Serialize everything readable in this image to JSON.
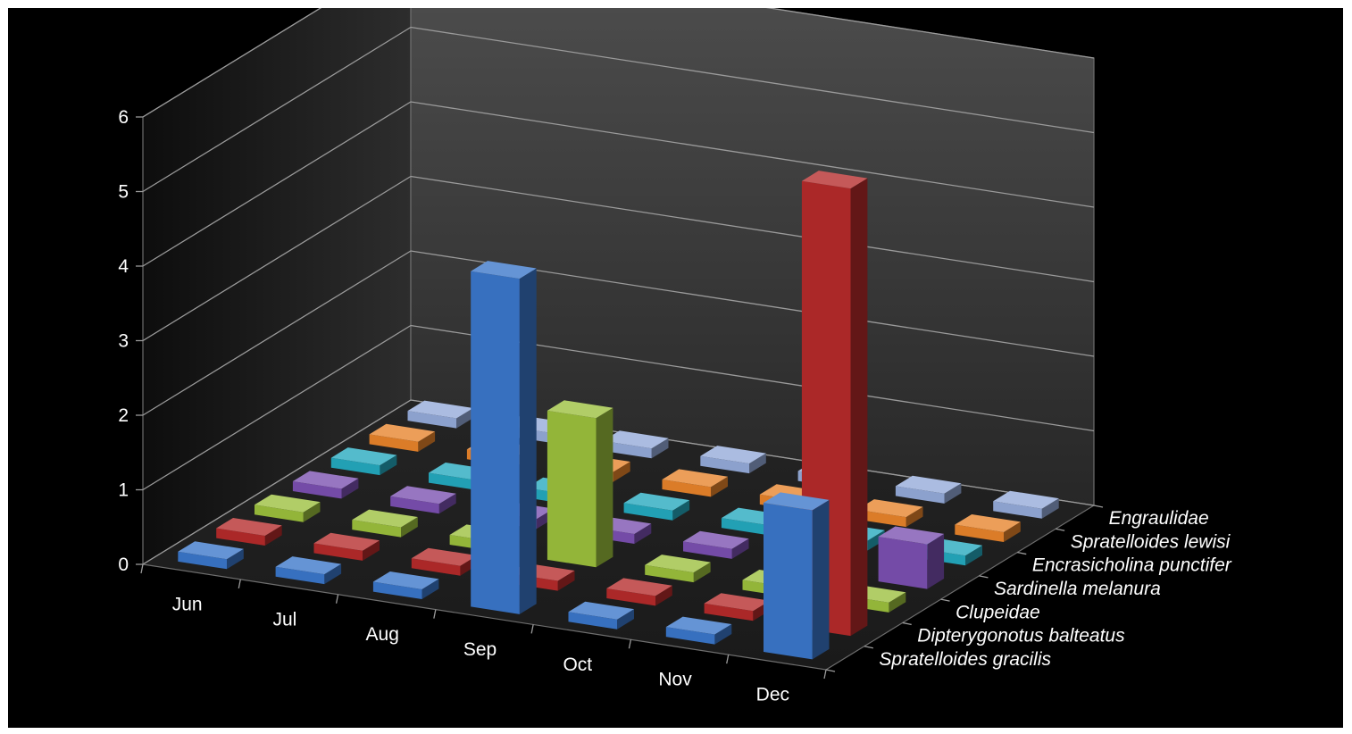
{
  "chart_data": {
    "type": "bar",
    "title": "",
    "xlabel": "",
    "ylabel": "",
    "ylim": [
      0,
      6
    ],
    "yticks": [
      0,
      1,
      2,
      3,
      4,
      5,
      6
    ],
    "ytick_labels": [
      "0",
      "1",
      "2",
      "3",
      "4",
      "5",
      "6"
    ],
    "grid": true,
    "legend_placement": "depth axis (right side)",
    "categories": [
      "Jun",
      "Jul",
      "Aug",
      "Sep",
      "Oct",
      "Nov",
      "Dec"
    ],
    "series": [
      {
        "name": "Spratelloides gracilis",
        "color": "#3a76c9",
        "values": [
          0,
          0,
          0,
          4.5,
          0,
          0,
          2
        ]
      },
      {
        "name": "Dipterygonotus balteatus",
        "color": "#b42a2a",
        "values": [
          0,
          0,
          0,
          0,
          0,
          0,
          6
        ]
      },
      {
        "name": "Clupeidae",
        "color": "#9bbf3c",
        "values": [
          0,
          0,
          0,
          2,
          0,
          0,
          0
        ]
      },
      {
        "name": "Sardinella melanura",
        "color": "#7a4fb0",
        "values": [
          0,
          0,
          0,
          0,
          0,
          0,
          0.6
        ]
      },
      {
        "name": "Encrasicholina punctifer",
        "color": "#24a8bd",
        "values": [
          0,
          0,
          0,
          0,
          0,
          0,
          0
        ]
      },
      {
        "name": "Spratelloides lewisi",
        "color": "#e6822a",
        "values": [
          0,
          0,
          0,
          0,
          0,
          0,
          0
        ]
      },
      {
        "name": "Engraulidae",
        "color": "#93a9d8",
        "values": [
          0,
          0,
          0,
          0,
          0,
          0,
          0
        ]
      }
    ]
  }
}
